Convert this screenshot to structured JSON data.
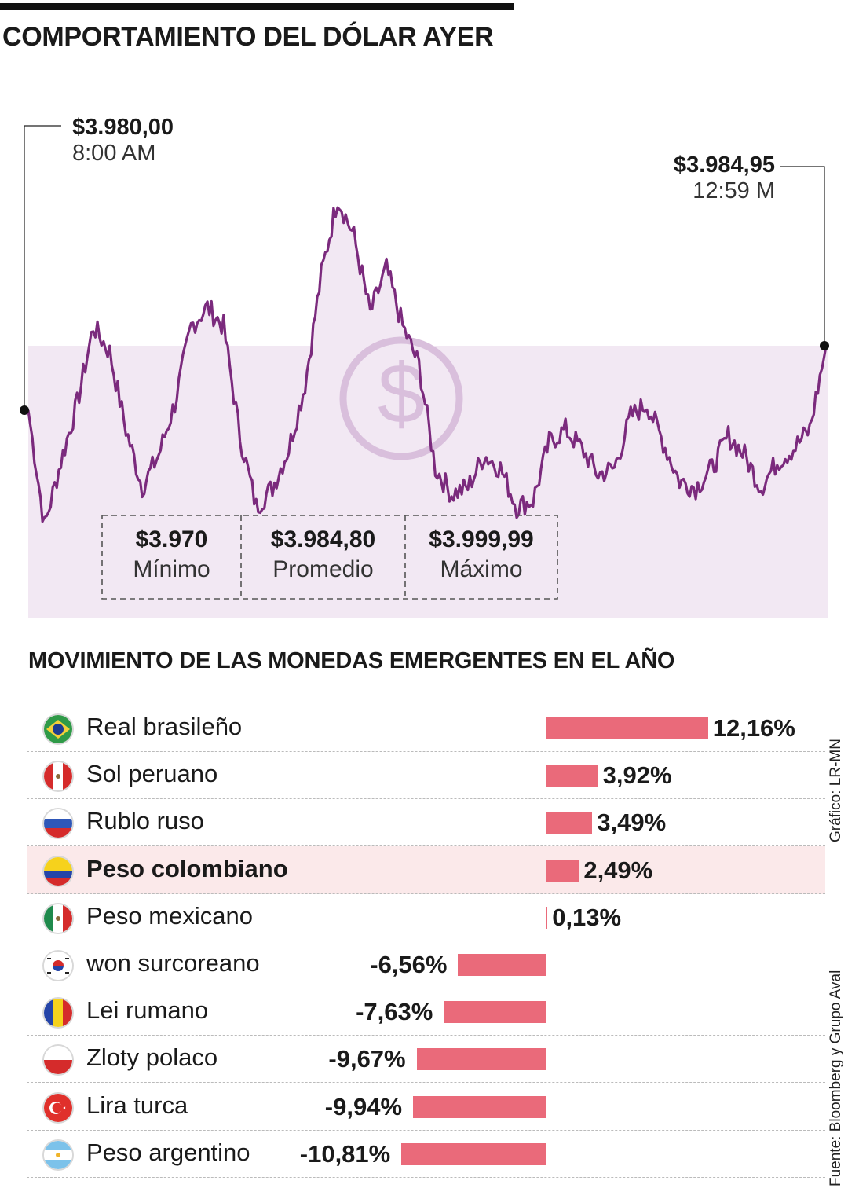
{
  "header": {
    "title": "COMPORTAMIENTO DEL DÓLAR AYER"
  },
  "callouts": {
    "start": {
      "price": "$3.980,00",
      "time": "8:00 AM"
    },
    "end": {
      "price": "$3.984,95",
      "time": "12:59 M"
    }
  },
  "stats": [
    {
      "value": "$3.970",
      "label": "Mínimo"
    },
    {
      "value": "$3.984,80",
      "label": "Promedio"
    },
    {
      "value": "$3.999,99",
      "label": "Máximo"
    }
  ],
  "section2": {
    "title": "MOVIMIENTO DE LAS MONEDAS EMERGENTES EN EL AÑO"
  },
  "credits": {
    "graphic": "Gráfico: LR-MN",
    "source": "Fuente: Bloomberg y Grupo Aval"
  },
  "colors": {
    "line": "#7b2a7d",
    "area": "#f2e8f3",
    "icon": "#d9bfdc",
    "bar": "#ea6a7a",
    "highlight": "#fbe9ea"
  },
  "icons": {
    "center": "dollar-coin-icon"
  },
  "chart_data": [
    {
      "type": "line",
      "title": "COMPORTAMIENTO DEL DÓLAR AYER",
      "x_start": "8:00 AM",
      "x_end": "12:59 M",
      "annotations": [
        "$3.980,00",
        "$3.984,95"
      ],
      "series": [
        {
          "values": [
            3980.0,
            3971.0,
            3976.0,
            3980.5,
            3986.5,
            3984.5,
            3978.5,
            3974.0,
            3976.5,
            3980.5,
            3986.5,
            3988.0,
            3986.5,
            3978.0,
            3972.5,
            3974.0,
            3977.0,
            3982.0,
            3990.5,
            3996.5,
            3993.5,
            3987.5,
            3991.0,
            3986.5,
            3983.5,
            3975.5,
            3973.5,
            3974.0,
            3976.5,
            3975.5,
            3972.5,
            3973.0,
            3977.5,
            3978.5,
            3977.0,
            3975.0,
            3975.5,
            3979.5,
            3980.5,
            3977.5,
            3974.5,
            3974.0,
            3975.5,
            3978.0,
            3976.5,
            3974.0,
            3976.0,
            3977.0,
            3978.5,
            3984.95
          ]
        }
      ]
    },
    {
      "type": "bar",
      "title": "MOVIMIENTO DE LAS MONEDAS EMERGENTES EN EL AÑO",
      "categories": [
        "Real brasileño",
        "Sol peruano",
        "Rublo ruso",
        "Peso colombiano",
        "Peso mexicano",
        "won surcoreano",
        "Lei rumano",
        "Zloty polaco",
        "Lira turca",
        "Peso argentino"
      ],
      "values": [
        12.16,
        3.92,
        3.49,
        2.49,
        0.13,
        -6.56,
        -7.63,
        -9.67,
        -9.94,
        -10.81
      ],
      "labels": [
        "12,16%",
        "3,92%",
        "3,49%",
        "2,49%",
        "0,13%",
        "-6,56%",
        "-7,63%",
        "-9,67%",
        "-9,94%",
        "-10,81%"
      ],
      "flags": [
        "brazil-flag-icon",
        "peru-flag-icon",
        "russia-flag-icon",
        "colombia-flag-icon",
        "mexico-flag-icon",
        "south-korea-flag-icon",
        "romania-flag-icon",
        "poland-flag-icon",
        "turkey-flag-icon",
        "argentina-flag-icon"
      ],
      "highlighted": "Peso colombiano"
    }
  ]
}
